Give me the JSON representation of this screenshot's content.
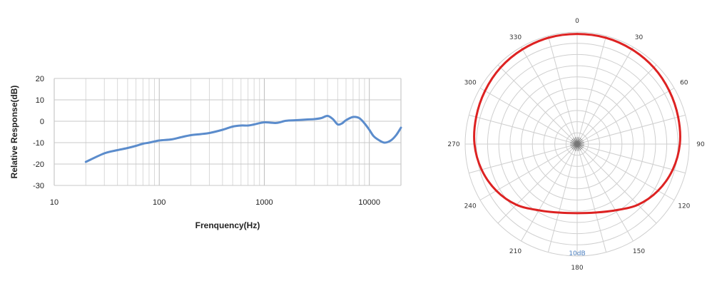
{
  "chart_data": [
    {
      "type": "line",
      "title": "",
      "xlabel": "Frenquency(Hz)",
      "ylabel": "Relative Response(dB)",
      "x_scale": "log",
      "xlim": [
        10,
        20000
      ],
      "ylim": [
        -30,
        20
      ],
      "x_ticks": [
        "10",
        "100",
        "1000",
        "10000"
      ],
      "y_ticks": [
        "20",
        "10",
        "0",
        "-10",
        "-20",
        "-30"
      ],
      "grid": true,
      "line_color": "#5b8ccc",
      "series": [
        {
          "name": "",
          "x": [
            20,
            30,
            40,
            50,
            60,
            70,
            80,
            100,
            130,
            160,
            200,
            250,
            300,
            400,
            500,
            600,
            700,
            800,
            1000,
            1300,
            1600,
            2000,
            2500,
            3000,
            3500,
            4000,
            4500,
            5000,
            5500,
            6000,
            7000,
            8000,
            9000,
            10000,
            11000,
            12500,
            14000,
            16000,
            18000,
            20000
          ],
          "y": [
            -19,
            -15,
            -13.5,
            -12.5,
            -11.5,
            -10.5,
            -10,
            -9,
            -8.5,
            -7.5,
            -6.5,
            -6,
            -5.5,
            -4,
            -2.5,
            -2,
            -2,
            -1.5,
            -0.5,
            -0.8,
            0.2,
            0.5,
            0.8,
            1,
            1.5,
            2.5,
            1,
            -1.5,
            -1,
            0.5,
            2,
            1.5,
            -1,
            -4,
            -7,
            -9,
            -10,
            -9,
            -6.5,
            -3
          ]
        }
      ]
    },
    {
      "type": "polar",
      "title": "",
      "angle_labels": [
        "0",
        "30",
        "60",
        "90",
        "120",
        "150",
        "180",
        "210",
        "240",
        "270",
        "300",
        "330"
      ],
      "scale_label": "10dB",
      "rlim": [
        -30,
        0
      ],
      "grid": true,
      "line_color": "#dd2222",
      "series": [
        {
          "name": "",
          "angles": [
            0,
            15,
            30,
            45,
            60,
            75,
            90,
            105,
            120,
            135,
            150,
            165,
            180,
            195,
            210,
            225,
            240,
            255,
            270,
            285,
            300,
            315,
            330,
            345
          ],
          "values": [
            -0.5,
            -0.5,
            -0.7,
            -1,
            -1.5,
            -2,
            -2.5,
            -3.5,
            -5,
            -7,
            -9.5,
            -11,
            -11.5,
            -11,
            -9.5,
            -7,
            -5,
            -3.5,
            -2.5,
            -2,
            -1.5,
            -1,
            -0.7,
            -0.5
          ]
        }
      ]
    }
  ]
}
